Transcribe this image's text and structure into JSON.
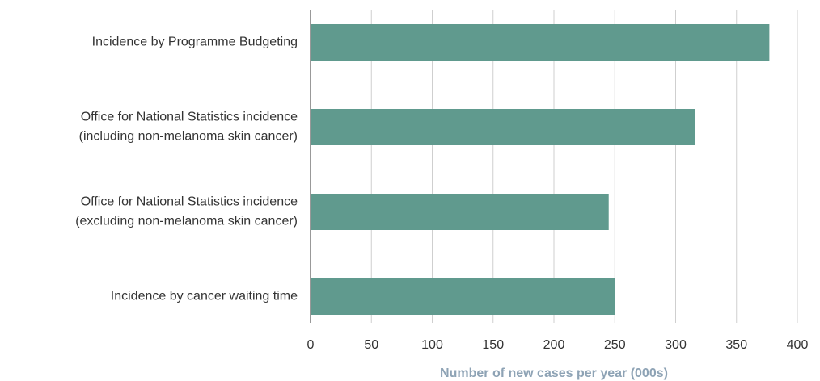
{
  "chart_data": {
    "type": "bar",
    "orientation": "horizontal",
    "categories": [
      "Incidence by Programme Budgeting",
      "Office for National Statistics incidence (including non-melanoma skin cancer)",
      "Office for National Statistics incidence (excluding non-melanoma skin cancer)",
      "Incidence by cancer waiting time"
    ],
    "values": [
      377,
      316,
      245,
      250
    ],
    "color": "#609a8e",
    "x_label": "Number of new cases per year (000s)",
    "xlim": [
      0,
      400
    ],
    "xticks": [
      0,
      50,
      100,
      150,
      200,
      250,
      300,
      350,
      400
    ],
    "grid": true
  }
}
